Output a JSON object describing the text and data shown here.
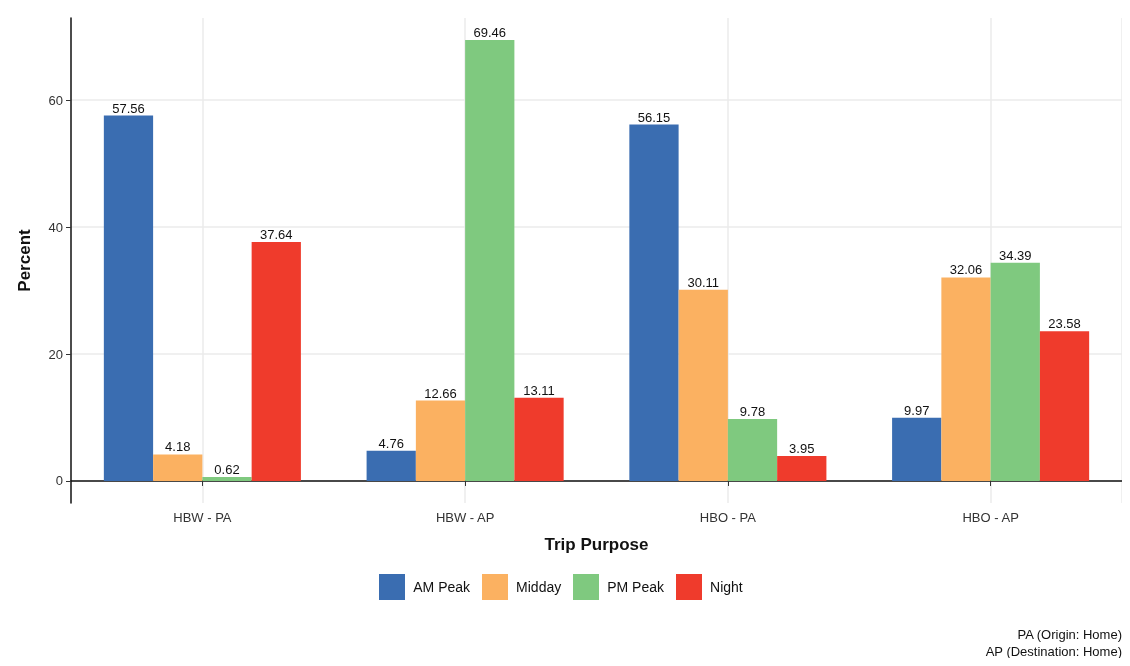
{
  "chart_data": {
    "type": "bar",
    "xlabel": "Trip Purpose",
    "ylabel": "Percent",
    "categories": [
      "HBW - PA",
      "HBW - AP",
      "HBO - PA",
      "HBO - AP"
    ],
    "series": [
      {
        "name": "AM Peak",
        "color": "#3a6db1",
        "values": [
          57.56,
          4.76,
          56.15,
          9.97
        ]
      },
      {
        "name": "Midday",
        "color": "#fbb161",
        "values": [
          4.18,
          12.66,
          30.11,
          32.06
        ]
      },
      {
        "name": "PM Peak",
        "color": "#7fc97f",
        "values": [
          0.62,
          69.46,
          9.78,
          34.39
        ]
      },
      {
        "name": "Night",
        "color": "#ef3b2c",
        "values": [
          37.64,
          13.11,
          3.95,
          23.58
        ]
      }
    ],
    "ylim": [
      -3.47,
      72.93
    ],
    "yticks": [
      0,
      20,
      40,
      60
    ],
    "grid": true,
    "legend": "bottom",
    "data_labels": true,
    "annotations": [
      "PA (Origin: Home)",
      "AP (Destination: Home)"
    ]
  }
}
